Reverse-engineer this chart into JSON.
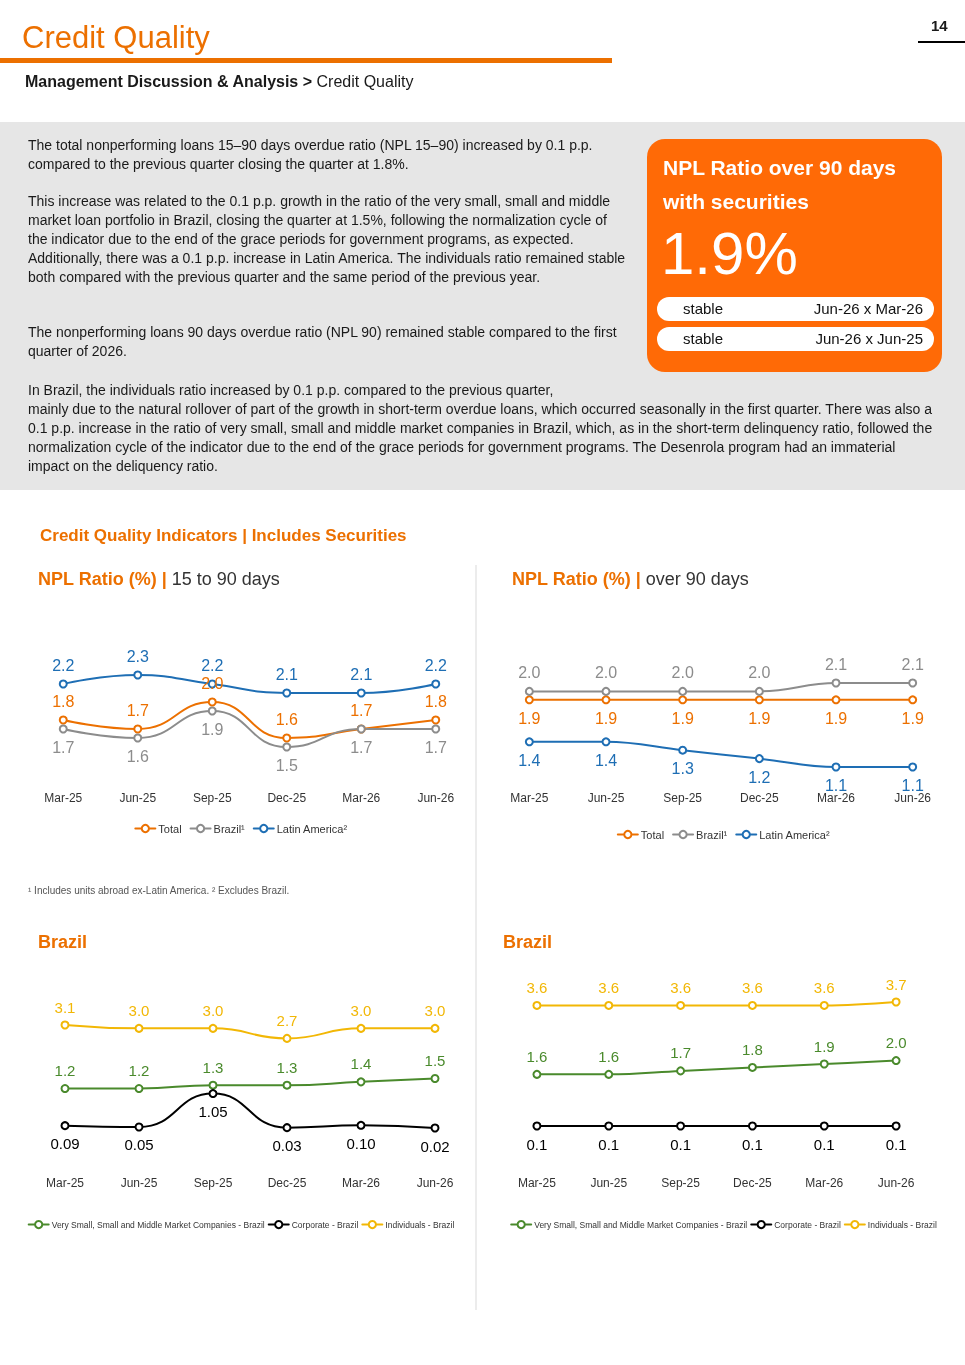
{
  "chart_data": [
    {
      "type": "other",
      "title": "Credit Quality",
      "subtitle": "Management Discussion & Analysis > Credit Quality",
      "annotations": [
        "The total nonperforming loans 15–90 days overdue ratio (NPL 15–90) increased by 0.1 p.p. compared to the previous quarter closing the quarter at 1.8%.",
        "This increase was related to the 0.1 p.p. growth in the ratio of the very small, small and middle market loan portfolio in Brazil, closing the quarter at 1.5%, following the normalization cycle of the indicator due to the end of the grace periods for government programs, as expected. Additionally, there was a 0.1 p.p. increase in Latin America. The individuals ratio remained stable both compared with the previous quarter and the same period of the previous year.",
        "The nonperforming loans 90 days overdue ratio (NPL 90) remained stable compared to the first quarter of 2026.",
        "In Brazil, the individuals ratio increased by 0.1 p.p. compared to the previous quarter,\nmainly due to the natural rollover of part of the growth in short-term overdue loans, which occurred seasonally in the first quarter. There was also a 0.1 p.p. increase in the ratio of very small, small and middle market companies in Brazil, which, as in the short-term delinquency ratio, followed the normalization cycle of the indicator due to the end of the grace periods for government programs. The Desenrola program had an immaterial impact on the deliquency ratio.",
        "14"
      ]
    },
    {
      "type": "other",
      "title": "NPL Ratio over 90 days with securities",
      "annotations": [
        "1.9%",
        "stable",
        "Jun-26 x Mar-26",
        "stable",
        "Jun-26 x Jun-25"
      ]
    },
    {
      "type": "line",
      "title": "NPL Ratio (%) | 15 to 90 days",
      "annotations": [
        "Credit Quality Indicators | Includes Securities",
        "¹ Includes units abroad ex-Latin America. ² Excludes Brazil."
      ],
      "categories": [
        "Mar-25",
        "Jun-25",
        "Sep-25",
        "Dec-25",
        "Mar-26",
        "Jun-26"
      ],
      "series": [
        {
          "name": "Total",
          "color": "#ec7000",
          "values": [
            1.8,
            1.7,
            2.0,
            1.6,
            1.7,
            1.8
          ],
          "value_labels": [
            "1.8",
            "1.7",
            "2.0",
            "1.6",
            "1.7",
            "1.8"
          ]
        },
        {
          "name": "Brazil¹",
          "color": "#8c8c8c",
          "values": [
            1.7,
            1.6,
            1.9,
            1.5,
            1.7,
            1.7
          ],
          "value_labels": [
            "1.7",
            "1.6",
            "1.9",
            "1.5",
            "1.7",
            "1.7"
          ]
        },
        {
          "name": "Latin America²",
          "color": "#1e6eb4",
          "values": [
            2.2,
            2.3,
            2.2,
            2.1,
            2.1,
            2.2
          ],
          "value_labels": [
            "2.2",
            "2.3",
            "2.2",
            "2.1",
            "2.1",
            "2.2"
          ]
        }
      ],
      "marker": "circle",
      "line_style": "solid",
      "legend": "bottom",
      "tick_labels": "x"
    },
    {
      "type": "line",
      "title": "NPL Ratio (%) | over 90 days",
      "categories": [
        "Mar-25",
        "Jun-25",
        "Sep-25",
        "Dec-25",
        "Mar-26",
        "Jun-26"
      ],
      "series": [
        {
          "name": "Total",
          "color": "#ec7000",
          "values": [
            1.9,
            1.9,
            1.9,
            1.9,
            1.9,
            1.9
          ],
          "value_labels": [
            "1.9",
            "1.9",
            "1.9",
            "1.9",
            "1.9",
            "1.9"
          ]
        },
        {
          "name": "Brazil¹",
          "color": "#8c8c8c",
          "values": [
            2.0,
            2.0,
            2.0,
            2.0,
            2.1,
            2.1
          ],
          "value_labels": [
            "2.0",
            "2.0",
            "2.0",
            "2.0",
            "2.1",
            "2.1"
          ]
        },
        {
          "name": "Latin America²",
          "color": "#1e6eb4",
          "values": [
            1.4,
            1.4,
            1.3,
            1.2,
            1.1,
            1.1
          ],
          "value_labels": [
            "1.4",
            "1.4",
            "1.3",
            "1.2",
            "1.1",
            "1.1"
          ]
        }
      ],
      "marker": "circle",
      "line_style": "solid",
      "legend": "bottom",
      "tick_labels": "x"
    },
    {
      "type": "line",
      "title": "Brazil",
      "categories": [
        "Mar-25",
        "Jun-25",
        "Sep-25",
        "Dec-25",
        "Mar-26",
        "Jun-26"
      ],
      "series": [
        {
          "name": "Very Small, Small and Middle Market Companies - Brazil",
          "color": "#4a8a2c",
          "values": [
            1.2,
            1.2,
            1.3,
            1.3,
            1.4,
            1.5
          ],
          "value_labels": [
            "1.2",
            "1.2",
            "1.3",
            "1.3",
            "1.4",
            "1.5"
          ]
        },
        {
          "name": "Corporate - Brazil",
          "color": "#000000",
          "values": [
            0.09,
            0.05,
            1.05,
            0.03,
            0.1,
            0.02
          ],
          "value_labels": [
            "0.09",
            "0.05",
            "1.05",
            "0.03",
            "0.10",
            "0.02"
          ]
        },
        {
          "name": "Individuals - Brazil",
          "color": "#f2b705",
          "values": [
            3.1,
            3.0,
            3.0,
            2.7,
            3.0,
            3.0
          ],
          "value_labels": [
            "3.1",
            "3.0",
            "3.0",
            "2.7",
            "3.0",
            "3.0"
          ]
        }
      ],
      "marker": "circle",
      "line_style": "solid",
      "legend": "bottom",
      "tick_labels": "x"
    },
    {
      "type": "line",
      "title": "Brazil",
      "categories": [
        "Mar-25",
        "Jun-25",
        "Sep-25",
        "Dec-25",
        "Mar-26",
        "Jun-26"
      ],
      "series": [
        {
          "name": "Very Small, Small and Middle Market Companies - Brazil",
          "color": "#4a8a2c",
          "values": [
            1.6,
            1.6,
            1.7,
            1.8,
            1.9,
            2.0
          ],
          "value_labels": [
            "1.6",
            "1.6",
            "1.7",
            "1.8",
            "1.9",
            "2.0"
          ]
        },
        {
          "name": "Corporate - Brazil",
          "color": "#000000",
          "values": [
            0.1,
            0.1,
            0.1,
            0.1,
            0.1,
            0.1
          ],
          "value_labels": [
            "0.1",
            "0.1",
            "0.1",
            "0.1",
            "0.1",
            "0.1"
          ]
        },
        {
          "name": "Individuals - Brazil",
          "color": "#f2b705",
          "values": [
            3.6,
            3.6,
            3.6,
            3.6,
            3.6,
            3.7
          ],
          "value_labels": [
            "3.6",
            "3.6",
            "3.6",
            "3.6",
            "3.6",
            "3.7"
          ]
        }
      ],
      "marker": "circle",
      "line_style": "solid",
      "legend": "bottom",
      "tick_labels": "x"
    }
  ]
}
